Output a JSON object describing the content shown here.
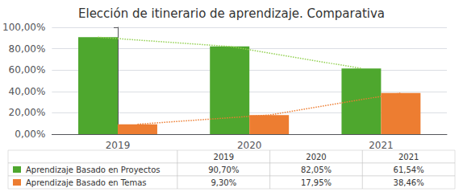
{
  "chart_data": {
    "type": "bar",
    "title": "Elección de itinerario de aprendizaje. Comparativa",
    "categories": [
      "2019",
      "2020",
      "2021"
    ],
    "series": [
      {
        "name": "Aprendizaje Basado en Proyectos",
        "color": "#4ea72e",
        "values": [
          0.907,
          0.8205,
          0.6154
        ],
        "value_labels": [
          "90,70%",
          "82,05%",
          "61,54%"
        ]
      },
      {
        "name": "Aprendizaje Basado en Temas",
        "color": "#ed7d31",
        "values": [
          0.093,
          0.1795,
          0.3846
        ],
        "value_labels": [
          "9,30%",
          "17,95%",
          "38,46%"
        ]
      },
      {
        "name": "Aprendizaje Basado en Proyectos",
        "type": "line",
        "line_style": "dotted",
        "color": "#92d050",
        "values": [
          0.907,
          0.8205,
          0.6154
        ]
      },
      {
        "name": "Aprendizaje Basado en Temas",
        "type": "line",
        "line_style": "dotted",
        "color": "#ed7d31",
        "values": [
          0.093,
          0.1795,
          0.3846
        ]
      }
    ],
    "ylim": [
      0,
      1.0
    ],
    "yticks": [
      {
        "value": 0.0,
        "label": "0,00%"
      },
      {
        "value": 0.2,
        "label": "20,00%"
      },
      {
        "value": 0.4,
        "label": "40,00%"
      },
      {
        "value": 0.6,
        "label": "60,00%"
      },
      {
        "value": 0.8,
        "label": "80,00%"
      },
      {
        "value": 1.0,
        "label": "100,00%"
      }
    ],
    "grid": true
  }
}
